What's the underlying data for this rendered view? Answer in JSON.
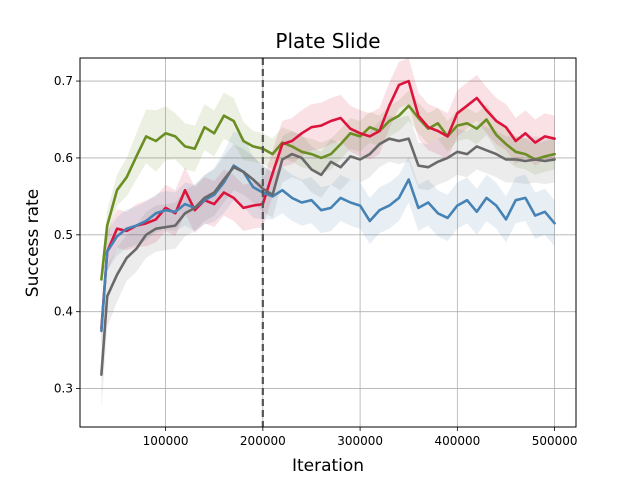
{
  "chart_data": {
    "type": "line",
    "title": "Plate Slide",
    "xlabel": "Iteration",
    "ylabel": "Success rate",
    "xlim": [
      12000,
      522000
    ],
    "ylim": [
      0.25,
      0.73
    ],
    "xticks": [
      100000,
      200000,
      300000,
      400000,
      500000
    ],
    "xtick_labels": [
      "100000",
      "200000",
      "300000",
      "400000",
      "500000"
    ],
    "yticks": [
      0.3,
      0.4,
      0.5,
      0.6,
      0.7
    ],
    "ytick_labels": [
      "0.3",
      "0.4",
      "0.5",
      "0.6",
      "0.7"
    ],
    "grid": true,
    "vline": {
      "x": 200000,
      "color": "#555555",
      "style": "dashed"
    },
    "series": [
      {
        "color": "#6b8e23",
        "x": [
          34000,
          40000,
          50000,
          60000,
          70000,
          80000,
          90000,
          100000,
          110000,
          120000,
          130000,
          140000,
          150000,
          160000,
          170000,
          180000,
          190000,
          200000
        ],
        "y": [
          0.442,
          0.512,
          0.558,
          0.575,
          0.602,
          0.628,
          0.622,
          0.632,
          0.628,
          0.615,
          0.612,
          0.64,
          0.632,
          0.655,
          0.648,
          0.622,
          0.615,
          0.612
        ],
        "band": [
          0.018,
          0.02,
          0.02,
          0.025,
          0.03,
          0.035,
          0.04,
          0.035,
          0.03,
          0.03,
          0.03,
          0.03,
          0.03,
          0.03,
          0.03,
          0.025,
          0.02,
          0.02
        ]
      },
      {
        "color": "#6b8e23",
        "x": [
          200000,
          210000,
          220000,
          230000,
          240000,
          250000,
          260000,
          270000,
          280000,
          290000,
          300000,
          310000,
          320000,
          330000,
          340000,
          350000,
          360000,
          370000,
          380000,
          390000,
          400000,
          410000,
          420000,
          430000,
          440000,
          450000,
          460000,
          470000,
          480000,
          490000,
          500000
        ],
        "y": [
          0.612,
          0.605,
          0.62,
          0.615,
          0.608,
          0.605,
          0.6,
          0.605,
          0.618,
          0.632,
          0.628,
          0.64,
          0.635,
          0.648,
          0.655,
          0.668,
          0.652,
          0.638,
          0.645,
          0.628,
          0.642,
          0.645,
          0.638,
          0.65,
          0.63,
          0.618,
          0.608,
          0.605,
          0.598,
          0.602,
          0.605
        ],
        "band": [
          0.02,
          0.02,
          0.02,
          0.02,
          0.02,
          0.02,
          0.02,
          0.02,
          0.02,
          0.02,
          0.02,
          0.02,
          0.02,
          0.02,
          0.02,
          0.02,
          0.02,
          0.02,
          0.02,
          0.02,
          0.02,
          0.02,
          0.02,
          0.02,
          0.02,
          0.02,
          0.02,
          0.02,
          0.02,
          0.02,
          0.02
        ]
      },
      {
        "color": "#dc143c",
        "x": [
          34000,
          40000,
          50000,
          60000,
          70000,
          80000,
          90000,
          100000,
          110000,
          120000,
          130000,
          140000,
          150000,
          160000,
          170000,
          180000,
          190000,
          200000,
          210000,
          220000,
          230000,
          240000,
          250000,
          260000,
          270000,
          280000,
          290000,
          300000,
          310000,
          320000,
          330000,
          340000,
          350000,
          360000,
          370000,
          380000,
          390000,
          400000,
          410000,
          420000,
          430000,
          440000,
          450000,
          460000,
          470000,
          480000,
          490000,
          500000
        ],
        "y": [
          0.378,
          0.478,
          0.508,
          0.505,
          0.512,
          0.515,
          0.52,
          0.535,
          0.528,
          0.558,
          0.532,
          0.545,
          0.54,
          0.555,
          0.548,
          0.535,
          0.538,
          0.54,
          0.58,
          0.618,
          0.622,
          0.632,
          0.64,
          0.642,
          0.648,
          0.652,
          0.638,
          0.632,
          0.628,
          0.635,
          0.668,
          0.695,
          0.7,
          0.655,
          0.64,
          0.635,
          0.628,
          0.658,
          0.668,
          0.678,
          0.662,
          0.648,
          0.64,
          0.622,
          0.632,
          0.62,
          0.628,
          0.625
        ],
        "band": [
          0.02,
          0.025,
          0.025,
          0.025,
          0.028,
          0.03,
          0.03,
          0.03,
          0.03,
          0.03,
          0.03,
          0.03,
          0.03,
          0.03,
          0.03,
          0.03,
          0.03,
          0.03,
          0.03,
          0.03,
          0.03,
          0.03,
          0.03,
          0.03,
          0.03,
          0.03,
          0.03,
          0.03,
          0.03,
          0.03,
          0.03,
          0.03,
          0.03,
          0.03,
          0.03,
          0.03,
          0.03,
          0.03,
          0.03,
          0.03,
          0.03,
          0.03,
          0.03,
          0.03,
          0.03,
          0.03,
          0.03,
          0.03
        ]
      },
      {
        "color": "#4682b4",
        "x": [
          34000,
          40000,
          50000,
          60000,
          70000,
          80000,
          90000,
          100000,
          110000,
          120000,
          130000,
          140000,
          150000,
          160000,
          170000,
          180000,
          190000,
          200000,
          210000,
          220000,
          230000,
          240000,
          250000,
          260000,
          270000,
          280000,
          290000,
          300000,
          310000,
          320000,
          330000,
          340000,
          350000,
          360000,
          370000,
          380000,
          390000,
          400000,
          410000,
          420000,
          430000,
          440000,
          450000,
          460000,
          470000,
          480000,
          490000,
          500000
        ],
        "y": [
          0.375,
          0.478,
          0.498,
          0.508,
          0.512,
          0.518,
          0.528,
          0.532,
          0.53,
          0.54,
          0.535,
          0.545,
          0.552,
          0.568,
          0.59,
          0.582,
          0.562,
          0.555,
          0.55,
          0.558,
          0.548,
          0.542,
          0.545,
          0.532,
          0.535,
          0.548,
          0.542,
          0.538,
          0.518,
          0.532,
          0.538,
          0.548,
          0.572,
          0.535,
          0.542,
          0.528,
          0.522,
          0.538,
          0.545,
          0.53,
          0.548,
          0.538,
          0.52,
          0.545,
          0.548,
          0.525,
          0.53,
          0.515
        ],
        "band": [
          0.02,
          0.025,
          0.025,
          0.025,
          0.025,
          0.025,
          0.025,
          0.025,
          0.025,
          0.028,
          0.03,
          0.032,
          0.035,
          0.04,
          0.045,
          0.045,
          0.04,
          0.035,
          0.03,
          0.03,
          0.03,
          0.03,
          0.03,
          0.03,
          0.03,
          0.03,
          0.03,
          0.03,
          0.03,
          0.03,
          0.03,
          0.03,
          0.03,
          0.03,
          0.03,
          0.03,
          0.03,
          0.03,
          0.03,
          0.03,
          0.03,
          0.03,
          0.03,
          0.03,
          0.03,
          0.03,
          0.03,
          0.03
        ]
      },
      {
        "color": "#696969",
        "x": [
          34000,
          40000,
          50000,
          60000,
          70000,
          80000,
          90000,
          100000,
          110000,
          120000,
          130000,
          140000,
          150000,
          160000,
          170000,
          180000,
          190000,
          200000,
          210000,
          220000,
          230000,
          240000,
          250000,
          260000,
          270000,
          280000,
          290000,
          300000,
          310000,
          320000,
          330000,
          340000,
          350000,
          360000,
          370000,
          380000,
          390000,
          400000,
          410000,
          420000,
          430000,
          440000,
          450000,
          460000,
          470000,
          480000,
          490000,
          500000
        ],
        "y": [
          0.318,
          0.42,
          0.448,
          0.47,
          0.482,
          0.5,
          0.508,
          0.51,
          0.512,
          0.528,
          0.535,
          0.548,
          0.555,
          0.572,
          0.588,
          0.582,
          0.572,
          0.56,
          0.552,
          0.598,
          0.605,
          0.6,
          0.585,
          0.578,
          0.595,
          0.588,
          0.602,
          0.598,
          0.605,
          0.618,
          0.625,
          0.622,
          0.625,
          0.59,
          0.588,
          0.595,
          0.6,
          0.608,
          0.605,
          0.615,
          0.61,
          0.605,
          0.598,
          0.598,
          0.596,
          0.598,
          0.596,
          0.598
        ],
        "band": [
          0.045,
          0.04,
          0.035,
          0.03,
          0.03,
          0.03,
          0.03,
          0.03,
          0.03,
          0.03,
          0.03,
          0.03,
          0.03,
          0.03,
          0.03,
          0.03,
          0.03,
          0.03,
          0.03,
          0.03,
          0.03,
          0.03,
          0.03,
          0.03,
          0.03,
          0.03,
          0.03,
          0.03,
          0.03,
          0.03,
          0.03,
          0.03,
          0.03,
          0.03,
          0.03,
          0.03,
          0.03,
          0.03,
          0.03,
          0.03,
          0.03,
          0.03,
          0.03,
          0.03,
          0.03,
          0.03,
          0.03,
          0.03
        ]
      }
    ]
  }
}
